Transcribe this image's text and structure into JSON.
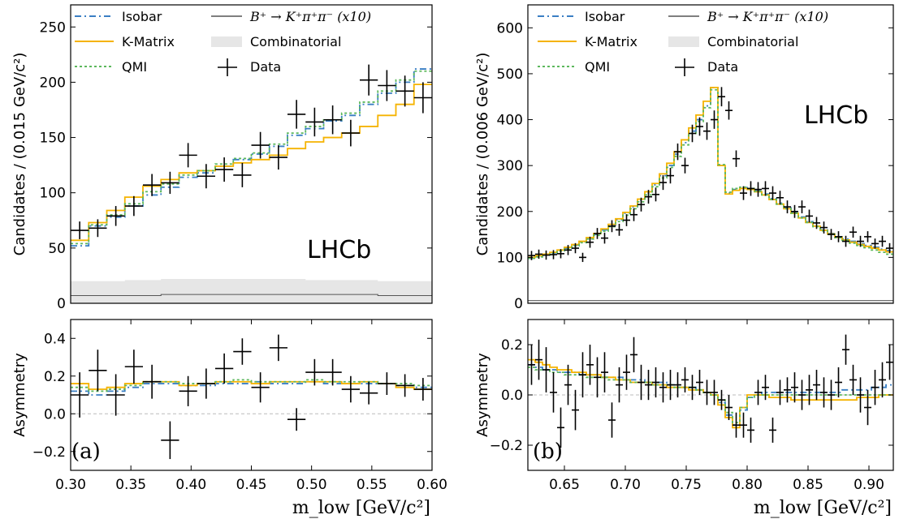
{
  "colors": {
    "isobar": "#3a7fc4",
    "kmatrix": "#f5b301",
    "qmi": "#5cb85c",
    "data": "#000000",
    "bkg": "#e6e6e6",
    "peaking": "#555555"
  },
  "legend": {
    "isobar": "Isobar",
    "kmatrix": "K-Matrix",
    "qmi": "QMI",
    "peaking": "B⁺ → K⁺π⁺π⁻ (x10)",
    "combinatorial": "Combinatorial",
    "data": "Data"
  },
  "lhcb_label": "LHCb",
  "panel_a": {
    "label": "(a)"
  },
  "panel_b": {
    "label": "(b)"
  },
  "chart_data": [
    {
      "type": "histogram",
      "panel": "a-top",
      "ylabel": "Candidates / (0.015 GeV/c²)",
      "xlim": [
        0.3,
        0.6
      ],
      "ylim": [
        0,
        270
      ],
      "yticks": [
        "0",
        "50",
        "100",
        "150",
        "200",
        "250"
      ],
      "edges": [
        0.3,
        0.315,
        0.33,
        0.345,
        0.36,
        0.375,
        0.39,
        0.405,
        0.42,
        0.435,
        0.45,
        0.465,
        0.48,
        0.495,
        0.51,
        0.525,
        0.54,
        0.555,
        0.57,
        0.585,
        0.6
      ],
      "data": {
        "y": [
          66,
          68,
          79,
          88,
          107,
          109,
          134,
          115,
          121,
          116,
          143,
          132,
          171,
          164,
          166,
          154,
          202,
          197,
          192,
          186
        ],
        "err": [
          8,
          8,
          9,
          9,
          10,
          10,
          11,
          11,
          11,
          11,
          12,
          11,
          13,
          13,
          13,
          12,
          14,
          14,
          14,
          14
        ]
      },
      "series": [
        {
          "name": "Isobar",
          "values": [
            52,
            70,
            78,
            88,
            98,
            105,
            114,
            118,
            124,
            130,
            135,
            142,
            152,
            158,
            165,
            170,
            180,
            190,
            200,
            212
          ]
        },
        {
          "name": "K-Matrix",
          "values": [
            57,
            73,
            84,
            96,
            106,
            112,
            118,
            120,
            124,
            127,
            130,
            134,
            140,
            146,
            150,
            154,
            160,
            170,
            180,
            198
          ]
        },
        {
          "name": "QMI",
          "values": [
            54,
            71,
            80,
            90,
            101,
            108,
            116,
            120,
            126,
            131,
            136,
            144,
            154,
            160,
            166,
            172,
            182,
            192,
            202,
            210
          ]
        }
      ],
      "combinatorial": [
        20,
        20,
        20,
        21,
        21,
        22,
        22,
        22,
        22,
        22,
        22,
        22,
        22,
        21,
        21,
        21,
        21,
        20,
        20,
        20
      ],
      "peaking": [
        7,
        7,
        7,
        7,
        7,
        8,
        8,
        8,
        8,
        8,
        8,
        8,
        8,
        8,
        8,
        8,
        8,
        7,
        7,
        7
      ]
    },
    {
      "type": "asymmetry",
      "panel": "a-bottom",
      "ylabel": "Asymmetry",
      "xlabel": "m_low [GeV/c²]",
      "xlim": [
        0.3,
        0.6
      ],
      "ylim": [
        -0.3,
        0.5
      ],
      "xticks": [
        "0.30",
        "0.35",
        "0.40",
        "0.45",
        "0.50",
        "0.55",
        "0.60"
      ],
      "yticks": [
        "−0.2",
        "0.0",
        "0.2",
        "0.4"
      ],
      "data": {
        "y": [
          0.1,
          0.23,
          0.1,
          0.25,
          0.17,
          -0.14,
          0.12,
          0.16,
          0.24,
          0.33,
          0.14,
          0.35,
          -0.03,
          0.22,
          0.22,
          0.13,
          0.11,
          0.16,
          0.15,
          0.13
        ],
        "err": [
          0.12,
          0.11,
          0.11,
          0.09,
          0.09,
          0.1,
          0.08,
          0.08,
          0.08,
          0.07,
          0.08,
          0.07,
          0.06,
          0.07,
          0.07,
          0.07,
          0.06,
          0.06,
          0.06,
          0.06
        ]
      },
      "series": [
        {
          "name": "Isobar",
          "values": [
            0.12,
            0.1,
            0.12,
            0.14,
            0.16,
            0.16,
            0.15,
            0.15,
            0.16,
            0.16,
            0.17,
            0.16,
            0.16,
            0.17,
            0.16,
            0.16,
            0.16,
            0.16,
            0.15,
            0.14
          ]
        },
        {
          "name": "K-Matrix",
          "values": [
            0.16,
            0.13,
            0.14,
            0.16,
            0.17,
            0.17,
            0.15,
            0.16,
            0.17,
            0.17,
            0.16,
            0.17,
            0.17,
            0.17,
            0.17,
            0.16,
            0.17,
            0.16,
            0.14,
            0.13
          ]
        },
        {
          "name": "QMI",
          "values": [
            0.14,
            0.12,
            0.13,
            0.15,
            0.17,
            0.17,
            0.16,
            0.16,
            0.17,
            0.18,
            0.17,
            0.17,
            0.17,
            0.18,
            0.17,
            0.17,
            0.17,
            0.16,
            0.16,
            0.15
          ]
        }
      ]
    },
    {
      "type": "histogram",
      "panel": "b-top",
      "ylabel": "Candidates / (0.006 GeV/c²)",
      "xlim": [
        0.62,
        0.92
      ],
      "ylim": [
        0,
        650
      ],
      "yticks": [
        "0",
        "100",
        "200",
        "300",
        "400",
        "500",
        "600"
      ],
      "edges": [
        0.62,
        0.626,
        0.632,
        0.638,
        0.644,
        0.65,
        0.656,
        0.662,
        0.668,
        0.674,
        0.68,
        0.686,
        0.692,
        0.698,
        0.704,
        0.71,
        0.716,
        0.722,
        0.728,
        0.734,
        0.74,
        0.746,
        0.752,
        0.758,
        0.764,
        0.77,
        0.776,
        0.782,
        0.788,
        0.794,
        0.8,
        0.806,
        0.812,
        0.818,
        0.824,
        0.83,
        0.836,
        0.842,
        0.848,
        0.854,
        0.86,
        0.866,
        0.872,
        0.878,
        0.884,
        0.89,
        0.896,
        0.902,
        0.908,
        0.914,
        0.92
      ],
      "data": {
        "y": [
          104,
          107,
          105,
          106,
          108,
          116,
          120,
          100,
          133,
          152,
          142,
          168,
          160,
          181,
          193,
          215,
          232,
          237,
          263,
          278,
          330,
          300,
          370,
          385,
          375,
          400,
          450,
          420,
          315,
          240,
          250,
          248,
          250,
          240,
          230,
          210,
          200,
          210,
          190,
          175,
          165,
          150,
          145,
          135,
          155,
          135,
          145,
          130,
          135,
          120
        ],
        "err": [
          10,
          10,
          10,
          10,
          10,
          11,
          11,
          10,
          12,
          12,
          12,
          13,
          13,
          13,
          14,
          15,
          15,
          15,
          16,
          17,
          18,
          17,
          19,
          20,
          19,
          20,
          21,
          20,
          18,
          15,
          16,
          16,
          16,
          15,
          15,
          14,
          14,
          14,
          14,
          13,
          13,
          12,
          12,
          12,
          12,
          12,
          12,
          11,
          12,
          11
        ]
      },
      "series": [
        {
          "name": "Isobar",
          "values": [
            98,
            102,
            106,
            110,
            115,
            120,
            127,
            134,
            142,
            150,
            160,
            170,
            182,
            196,
            210,
            225,
            240,
            258,
            278,
            300,
            325,
            350,
            375,
            400,
            430,
            470,
            300,
            240,
            248,
            252,
            250,
            245,
            238,
            228,
            218,
            208,
            198,
            188,
            178,
            168,
            160,
            152,
            145,
            140,
            135,
            130,
            126,
            122,
            118,
            115
          ]
        },
        {
          "name": "K-Matrix",
          "values": [
            100,
            104,
            107,
            111,
            116,
            122,
            128,
            135,
            143,
            152,
            162,
            172,
            184,
            198,
            212,
            227,
            243,
            261,
            282,
            305,
            330,
            356,
            382,
            410,
            440,
            470,
            300,
            238,
            246,
            250,
            248,
            243,
            236,
            226,
            216,
            206,
            196,
            186,
            176,
            168,
            159,
            151,
            144,
            138,
            133,
            128,
            124,
            120,
            116,
            112
          ]
        },
        {
          "name": "QMI",
          "values": [
            98,
            101,
            105,
            109,
            114,
            119,
            125,
            132,
            140,
            148,
            157,
            167,
            178,
            192,
            206,
            221,
            236,
            254,
            273,
            296,
            320,
            345,
            370,
            396,
            426,
            465,
            302,
            242,
            250,
            253,
            250,
            244,
            236,
            226,
            216,
            206,
            196,
            186,
            176,
            167,
            158,
            150,
            143,
            137,
            131,
            126,
            121,
            116,
            111,
            107
          ]
        }
      ],
      "combinatorial": [
        4,
        4,
        4,
        4,
        4,
        4,
        4,
        4,
        4,
        4,
        4,
        4,
        4,
        4,
        4,
        4,
        4,
        4,
        4,
        4,
        4,
        4,
        4,
        4,
        4,
        4,
        4,
        4,
        4,
        4,
        4,
        4,
        4,
        4,
        4,
        4,
        4,
        4,
        4,
        4,
        4,
        4,
        4,
        4,
        4,
        4,
        4,
        4,
        4,
        4
      ],
      "peaking": [
        6,
        6,
        6,
        6,
        6,
        6,
        6,
        6,
        6,
        6,
        6,
        6,
        6,
        6,
        6,
        6,
        6,
        6,
        6,
        6,
        6,
        6,
        6,
        6,
        6,
        6,
        6,
        6,
        6,
        6,
        6,
        6,
        6,
        6,
        6,
        6,
        6,
        6,
        6,
        6,
        6,
        6,
        6,
        6,
        6,
        6,
        6,
        6,
        6,
        6
      ]
    },
    {
      "type": "asymmetry",
      "panel": "b-bottom",
      "ylabel": "Asymmetry",
      "xlabel": "m_low [GeV/c²]",
      "xlim": [
        0.62,
        0.92
      ],
      "ylim": [
        -0.3,
        0.3
      ],
      "xticks": [
        "0.65",
        "0.70",
        "0.75",
        "0.80",
        "0.85",
        "0.90"
      ],
      "xtickvals": [
        0.65,
        0.7,
        0.75,
        0.8,
        0.85,
        0.9
      ],
      "yticks": [
        "−0.2",
        "0.0",
        "0.2"
      ],
      "data": {
        "y": [
          0.12,
          0.14,
          0.1,
          0.01,
          -0.13,
          0.04,
          -0.06,
          0.08,
          0.12,
          0.07,
          0.09,
          -0.1,
          0.04,
          0.09,
          0.16,
          0.05,
          0.04,
          0.05,
          0.03,
          0.04,
          0.04,
          0.06,
          0.03,
          0.05,
          0.01,
          0.01,
          -0.02,
          -0.05,
          -0.12,
          -0.12,
          -0.14,
          0.01,
          0.03,
          -0.14,
          0.01,
          0.02,
          0.03,
          0.0,
          0.02,
          0.04,
          0.01,
          0.0,
          0.05,
          0.18,
          0.06,
          0.0,
          -0.05,
          0.03,
          0.06,
          0.13
        ],
        "err": [
          0.08,
          0.08,
          0.09,
          0.08,
          0.08,
          0.08,
          0.08,
          0.09,
          0.08,
          0.08,
          0.08,
          0.07,
          0.07,
          0.07,
          0.07,
          0.07,
          0.06,
          0.06,
          0.06,
          0.06,
          0.05,
          0.05,
          0.05,
          0.05,
          0.05,
          0.05,
          0.04,
          0.05,
          0.05,
          0.05,
          0.05,
          0.05,
          0.05,
          0.05,
          0.05,
          0.05,
          0.06,
          0.06,
          0.06,
          0.06,
          0.06,
          0.06,
          0.06,
          0.06,
          0.06,
          0.07,
          0.07,
          0.07,
          0.07,
          0.07
        ]
      },
      "series": [
        {
          "name": "Isobar",
          "values": [
            0.12,
            0.11,
            0.1,
            0.1,
            0.09,
            0.09,
            0.09,
            0.08,
            0.08,
            0.08,
            0.07,
            0.07,
            0.07,
            0.06,
            0.06,
            0.06,
            0.05,
            0.05,
            0.05,
            0.04,
            0.04,
            0.03,
            0.03,
            0.02,
            0.01,
            0.0,
            -0.03,
            -0.08,
            -0.12,
            -0.06,
            -0.01,
            0.0,
            0.01,
            0.01,
            0.01,
            0.01,
            0.01,
            0.01,
            0.01,
            0.01,
            0.01,
            0.01,
            0.01,
            0.02,
            0.02,
            0.02,
            0.02,
            0.03,
            0.03,
            0.04
          ]
        },
        {
          "name": "K-Matrix",
          "values": [
            0.14,
            0.13,
            0.12,
            0.11,
            0.1,
            0.1,
            0.09,
            0.09,
            0.08,
            0.08,
            0.07,
            0.07,
            0.06,
            0.06,
            0.05,
            0.05,
            0.05,
            0.04,
            0.04,
            0.03,
            0.03,
            0.03,
            0.02,
            0.02,
            0.01,
            0.0,
            -0.04,
            -0.09,
            -0.13,
            -0.05,
            0.0,
            0.0,
            0.0,
            -0.01,
            -0.01,
            -0.01,
            -0.02,
            -0.02,
            -0.02,
            -0.02,
            -0.02,
            -0.02,
            -0.02,
            -0.02,
            -0.02,
            -0.01,
            -0.01,
            -0.01,
            0.0,
            0.0
          ]
        },
        {
          "name": "QMI",
          "values": [
            0.11,
            0.1,
            0.1,
            0.09,
            0.09,
            0.08,
            0.08,
            0.08,
            0.07,
            0.07,
            0.07,
            0.06,
            0.06,
            0.06,
            0.05,
            0.05,
            0.05,
            0.04,
            0.04,
            0.04,
            0.03,
            0.03,
            0.03,
            0.02,
            0.01,
            0.0,
            -0.02,
            -0.07,
            -0.11,
            -0.05,
            -0.01,
            0.0,
            0.0,
            0.0,
            0.0,
            0.0,
            0.0,
            0.0,
            0.0,
            0.0,
            0.0,
            0.0,
            0.0,
            0.0,
            0.0,
            0.0,
            0.0,
            0.0,
            0.0,
            0.0
          ]
        }
      ]
    }
  ]
}
